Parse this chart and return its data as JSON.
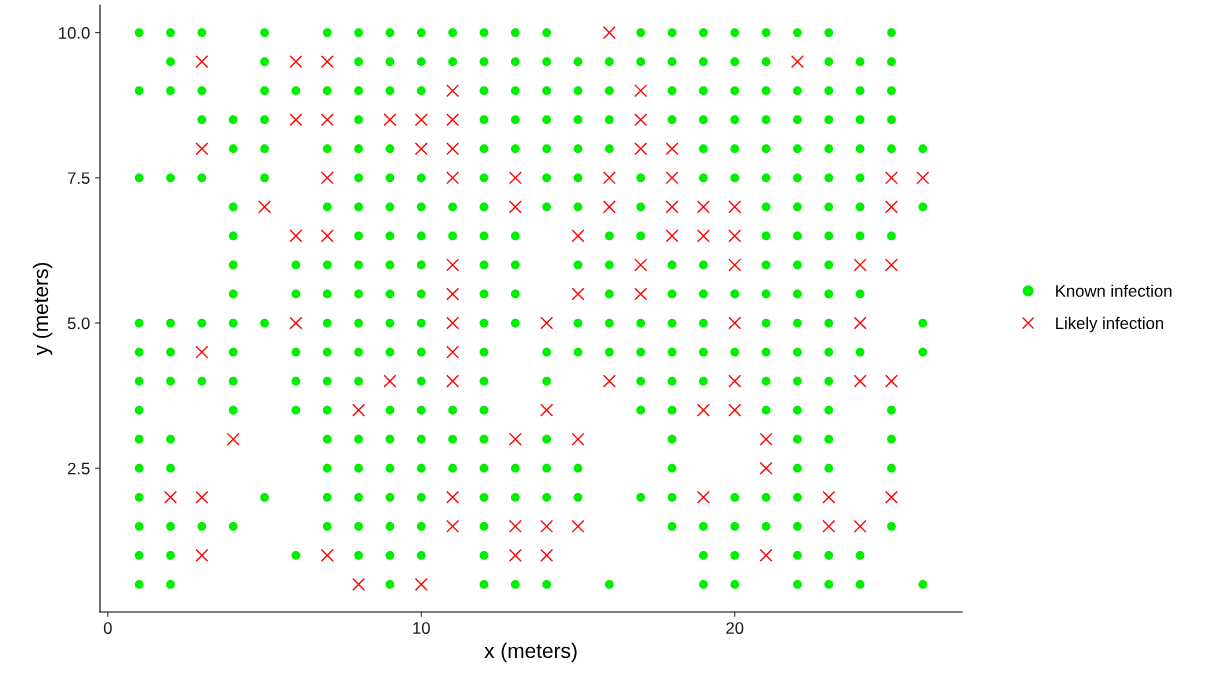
{
  "chart_data": {
    "type": "scatter",
    "xlabel": "x (meters)",
    "ylabel": "y (meters)",
    "xlim": [
      -0.25,
      27.25
    ],
    "ylim": [
      0.025,
      10.475
    ],
    "xticks": [
      0,
      10,
      20
    ],
    "yticks": [
      {
        "value": 2.5,
        "label": "2.5"
      },
      {
        "value": 5,
        "label": "5.0"
      },
      {
        "value": 7.5,
        "label": "7.5"
      },
      {
        "value": 10,
        "label": "10.0"
      }
    ],
    "grid": false,
    "legend": "right",
    "series": [
      {
        "name": "Known infection",
        "color": "#00ee00",
        "marker": "circle",
        "x": [
          1,
          2,
          3,
          5,
          7,
          8,
          9,
          10,
          11,
          12,
          13,
          14,
          17,
          18,
          19,
          20,
          21,
          22,
          23,
          25,
          2,
          5,
          8,
          9,
          10,
          11,
          12,
          13,
          14,
          15,
          16,
          17,
          18,
          19,
          20,
          21,
          23,
          24,
          25,
          1,
          2,
          3,
          5,
          6,
          7,
          8,
          9,
          10,
          12,
          13,
          14,
          15,
          16,
          18,
          19,
          20,
          21,
          22,
          23,
          24,
          25,
          3,
          4,
          5,
          8,
          12,
          13,
          14,
          15,
          16,
          18,
          19,
          20,
          21,
          22,
          23,
          24,
          25,
          4,
          5,
          7,
          8,
          9,
          12,
          13,
          14,
          15,
          16,
          19,
          20,
          21,
          22,
          23,
          24,
          25,
          26,
          1,
          2,
          3,
          5,
          8,
          9,
          10,
          12,
          14,
          15,
          17,
          19,
          20,
          21,
          22,
          23,
          24,
          4,
          7,
          8,
          9,
          10,
          11,
          12,
          14,
          15,
          17,
          21,
          22,
          23,
          24,
          26,
          4,
          8,
          9,
          10,
          11,
          12,
          13,
          16,
          17,
          21,
          22,
          23,
          24,
          25,
          4,
          6,
          7,
          8,
          9,
          10,
          12,
          13,
          15,
          16,
          18,
          19,
          21,
          22,
          23,
          4,
          6,
          7,
          8,
          9,
          10,
          12,
          13,
          16,
          18,
          19,
          20,
          21,
          22,
          23,
          24,
          1,
          2,
          3,
          4,
          5,
          7,
          8,
          9,
          10,
          12,
          13,
          15,
          16,
          17,
          18,
          19,
          21,
          22,
          23,
          26,
          1,
          2,
          4,
          6,
          7,
          8,
          9,
          10,
          12,
          14,
          15,
          16,
          17,
          18,
          19,
          20,
          21,
          22,
          23,
          24,
          26,
          1,
          2,
          3,
          4,
          6,
          7,
          8,
          10,
          12,
          14,
          17,
          18,
          19,
          21,
          22,
          23,
          1,
          4,
          6,
          7,
          9,
          10,
          11,
          12,
          17,
          18,
          21,
          22,
          23,
          25,
          1,
          2,
          7,
          8,
          9,
          10,
          11,
          12,
          14,
          18,
          22,
          23,
          25,
          1,
          2,
          7,
          8,
          9,
          10,
          11,
          12,
          13,
          14,
          15,
          18,
          22,
          23,
          25,
          1,
          5,
          7,
          8,
          9,
          10,
          12,
          13,
          14,
          15,
          17,
          18,
          20,
          21,
          22,
          1,
          2,
          3,
          4,
          7,
          8,
          9,
          10,
          12,
          18,
          19,
          20,
          21,
          22,
          25,
          1,
          2,
          6,
          8,
          9,
          10,
          12,
          19,
          20,
          22,
          23,
          24,
          1,
          2,
          9,
          12,
          13,
          14,
          16,
          19,
          20,
          22,
          23,
          24,
          26
        ],
        "values": [
          10,
          10,
          10,
          10,
          10,
          10,
          10,
          10,
          10,
          10,
          10,
          10,
          10,
          10,
          10,
          10,
          10,
          10,
          10,
          10,
          9.5,
          9.5,
          9.5,
          9.5,
          9.5,
          9.5,
          9.5,
          9.5,
          9.5,
          9.5,
          9.5,
          9.5,
          9.5,
          9.5,
          9.5,
          9.5,
          9.5,
          9.5,
          9.5,
          9,
          9,
          9,
          9,
          9,
          9,
          9,
          9,
          9,
          9,
          9,
          9,
          9,
          9,
          9,
          9,
          9,
          9,
          9,
          9,
          9,
          9,
          8.5,
          8.5,
          8.5,
          8.5,
          8.5,
          8.5,
          8.5,
          8.5,
          8.5,
          8.5,
          8.5,
          8.5,
          8.5,
          8.5,
          8.5,
          8.5,
          8.5,
          8,
          8,
          8,
          8,
          8,
          8,
          8,
          8,
          8,
          8,
          8,
          8,
          8,
          8,
          8,
          8,
          8,
          8,
          7.5,
          7.5,
          7.5,
          7.5,
          7.5,
          7.5,
          7.5,
          7.5,
          7.5,
          7.5,
          7.5,
          7.5,
          7.5,
          7.5,
          7.5,
          7.5,
          7.5,
          7,
          7,
          7,
          7,
          7,
          7,
          7,
          7,
          7,
          7,
          7,
          7,
          7,
          7,
          7,
          6.5,
          6.5,
          6.5,
          6.5,
          6.5,
          6.5,
          6.5,
          6.5,
          6.5,
          6.5,
          6.5,
          6.5,
          6.5,
          6.5,
          6,
          6,
          6,
          6,
          6,
          6,
          6,
          6,
          6,
          6,
          6,
          6,
          6,
          6,
          6,
          5.5,
          5.5,
          5.5,
          5.5,
          5.5,
          5.5,
          5.5,
          5.5,
          5.5,
          5.5,
          5.5,
          5.5,
          5.5,
          5.5,
          5.5,
          5.5,
          5,
          5,
          5,
          5,
          5,
          5,
          5,
          5,
          5,
          5,
          5,
          5,
          5,
          5,
          5,
          5,
          5,
          5,
          5,
          5,
          4.5,
          4.5,
          4.5,
          4.5,
          4.5,
          4.5,
          4.5,
          4.5,
          4.5,
          4.5,
          4.5,
          4.5,
          4.5,
          4.5,
          4.5,
          4.5,
          4.5,
          4.5,
          4.5,
          4.5,
          4.5,
          4,
          4,
          4,
          4,
          4,
          4,
          4,
          4,
          4,
          4,
          4,
          4,
          4,
          4,
          4,
          4,
          3.5,
          3.5,
          3.5,
          3.5,
          3.5,
          3.5,
          3.5,
          3.5,
          3.5,
          3.5,
          3.5,
          3.5,
          3.5,
          3.5,
          3,
          3,
          3,
          3,
          3,
          3,
          3,
          3,
          3,
          3,
          3,
          3,
          3,
          2.5,
          2.5,
          2.5,
          2.5,
          2.5,
          2.5,
          2.5,
          2.5,
          2.5,
          2.5,
          2.5,
          2.5,
          2.5,
          2.5,
          2.5,
          2,
          2,
          2,
          2,
          2,
          2,
          2,
          2,
          2,
          2,
          2,
          2,
          2,
          2,
          2,
          1.5,
          1.5,
          1.5,
          1.5,
          1.5,
          1.5,
          1.5,
          1.5,
          1.5,
          1.5,
          1.5,
          1.5,
          1.5,
          1.5,
          1.5,
          1,
          1,
          1,
          1,
          1,
          1,
          1,
          1,
          1,
          1,
          1,
          1,
          0.5,
          0.5,
          0.5,
          0.5,
          0.5,
          0.5,
          0.5,
          0.5,
          0.5,
          0.5,
          0.5,
          0.5,
          0.5
        ]
      },
      {
        "name": "Likely infection",
        "color": "#ff0000",
        "marker": "cross",
        "x": [
          16,
          3,
          6,
          7,
          22,
          11,
          17,
          6,
          7,
          9,
          10,
          11,
          17,
          3,
          10,
          11,
          17,
          18,
          7,
          11,
          13,
          16,
          18,
          25,
          26,
          5,
          13,
          16,
          18,
          19,
          20,
          25,
          6,
          7,
          15,
          18,
          19,
          20,
          11,
          17,
          20,
          24,
          25,
          11,
          15,
          17,
          6,
          11,
          14,
          20,
          24,
          3,
          11,
          9,
          11,
          16,
          20,
          24,
          25,
          8,
          14,
          19,
          20,
          4,
          13,
          15,
          21,
          21,
          2,
          3,
          11,
          19,
          23,
          25,
          11,
          13,
          14,
          15,
          23,
          24,
          3,
          7,
          13,
          14,
          21,
          8,
          10
        ],
        "values": [
          10,
          9.5,
          9.5,
          9.5,
          9.5,
          9,
          9,
          8.5,
          8.5,
          8.5,
          8.5,
          8.5,
          8.5,
          8,
          8,
          8,
          8,
          8,
          7.5,
          7.5,
          7.5,
          7.5,
          7.5,
          7.5,
          7.5,
          7,
          7,
          7,
          7,
          7,
          7,
          7,
          6.5,
          6.5,
          6.5,
          6.5,
          6.5,
          6.5,
          6,
          6,
          6,
          6,
          6,
          5.5,
          5.5,
          5.5,
          5,
          5,
          5,
          5,
          5,
          4.5,
          4.5,
          4,
          4,
          4,
          4,
          4,
          4,
          3.5,
          3.5,
          3.5,
          3.5,
          3,
          3,
          3,
          3,
          2.5,
          2,
          2,
          2,
          2,
          2,
          2,
          1.5,
          1.5,
          1.5,
          1.5,
          1.5,
          1.5,
          1,
          1,
          1,
          1,
          1,
          0.5,
          0.5
        ]
      }
    ]
  }
}
